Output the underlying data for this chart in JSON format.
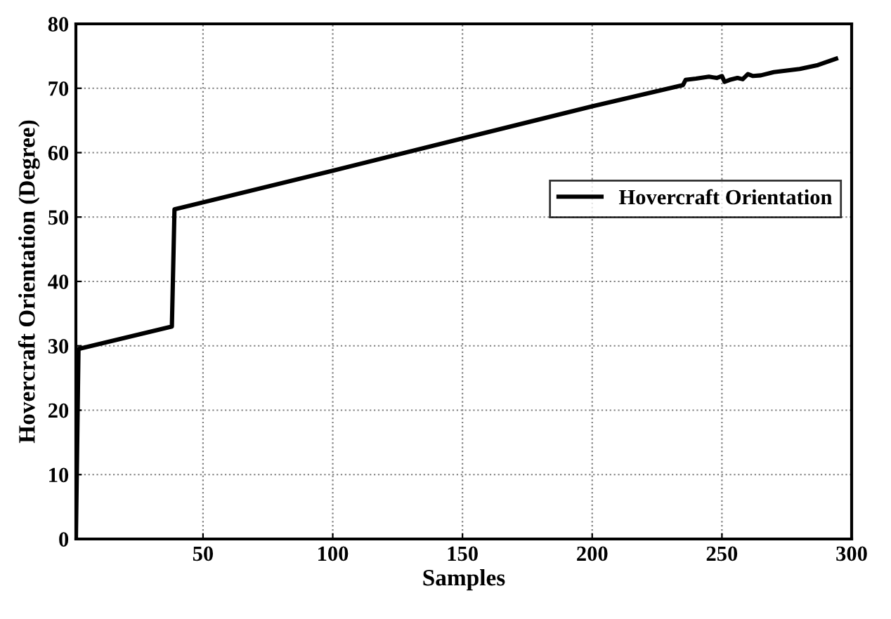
{
  "chart_data": {
    "type": "line",
    "xlabel": "Samples",
    "ylabel": "Hovercraft Orientation (Degree)",
    "xlim": [
      1,
      300
    ],
    "xticks": [
      50,
      100,
      150,
      200,
      250,
      300
    ],
    "ylim": [
      0,
      80
    ],
    "yticks": [
      0,
      10,
      20,
      30,
      40,
      50,
      60,
      70,
      80
    ],
    "grid": true,
    "legend": "right",
    "line_style": "solid",
    "marker": "none",
    "series": [
      {
        "name": "Hovercraft Orientation",
        "color": "#000000",
        "x": [
          1,
          2,
          38,
          39,
          100,
          150,
          200,
          235,
          236,
          240,
          245,
          248,
          250,
          251,
          253,
          256,
          258,
          260,
          262,
          265,
          270,
          280,
          287,
          294
        ],
        "values": [
          0,
          29.5,
          33,
          51.2,
          57.2,
          62.2,
          67.2,
          70.5,
          71.3,
          71.5,
          71.8,
          71.6,
          71.9,
          71.0,
          71.3,
          71.6,
          71.4,
          72.2,
          71.9,
          72.0,
          72.5,
          73.0,
          73.6,
          74.6
        ]
      }
    ]
  }
}
